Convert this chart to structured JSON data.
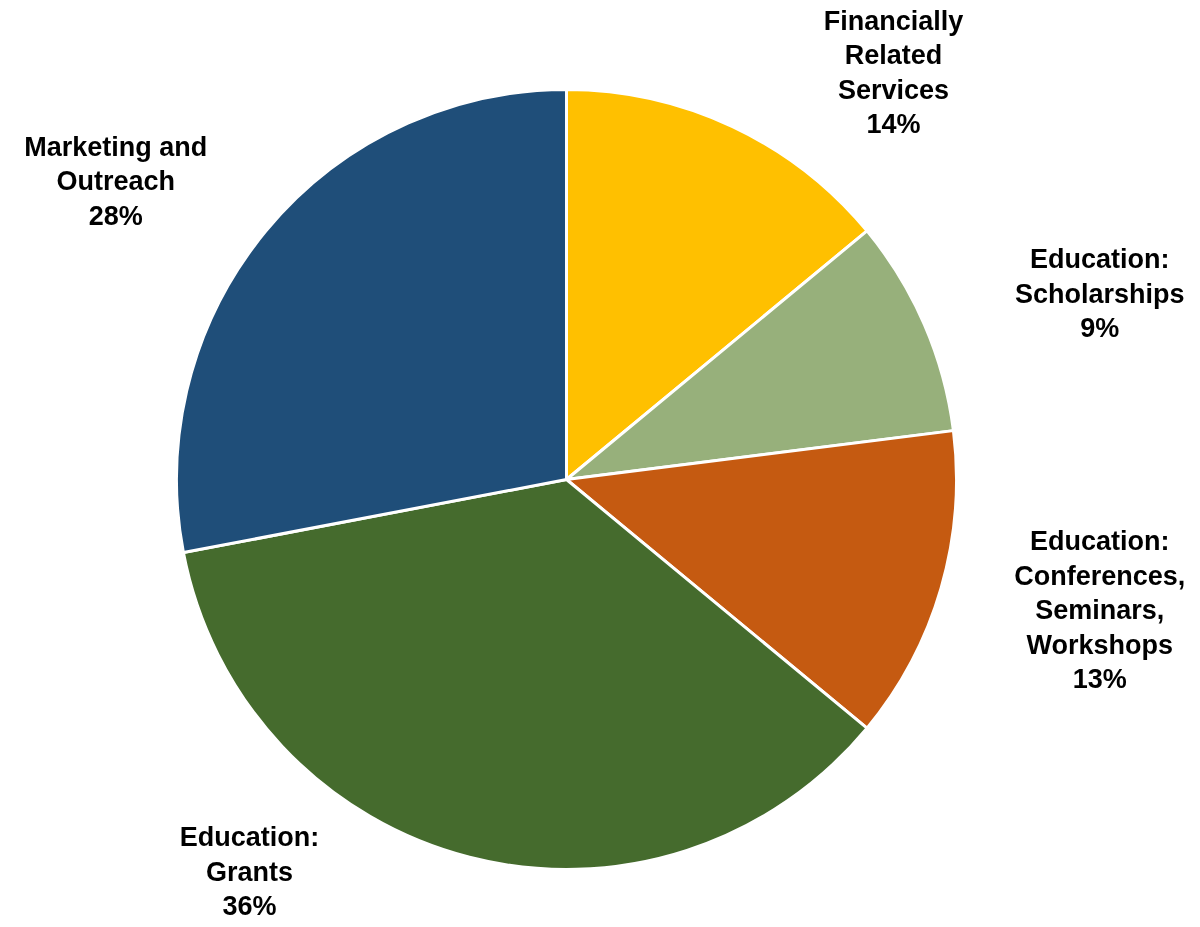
{
  "chart_data": {
    "type": "pie",
    "categories": [
      "Financially\nRelated\nServices",
      "Education:\nScholarships",
      "Education:\nConferences,\nSeminars,\nWorkshops",
      "Education:\nGrants",
      "Marketing and\nOutreach"
    ],
    "values": [
      14,
      9,
      13,
      36,
      28
    ],
    "value_labels": [
      "14%",
      "9%",
      "13%",
      "36%",
      "28%"
    ],
    "colors": [
      "#ffc000",
      "#97b07b",
      "#c55a11",
      "#456b2d",
      "#1f4e79"
    ]
  }
}
